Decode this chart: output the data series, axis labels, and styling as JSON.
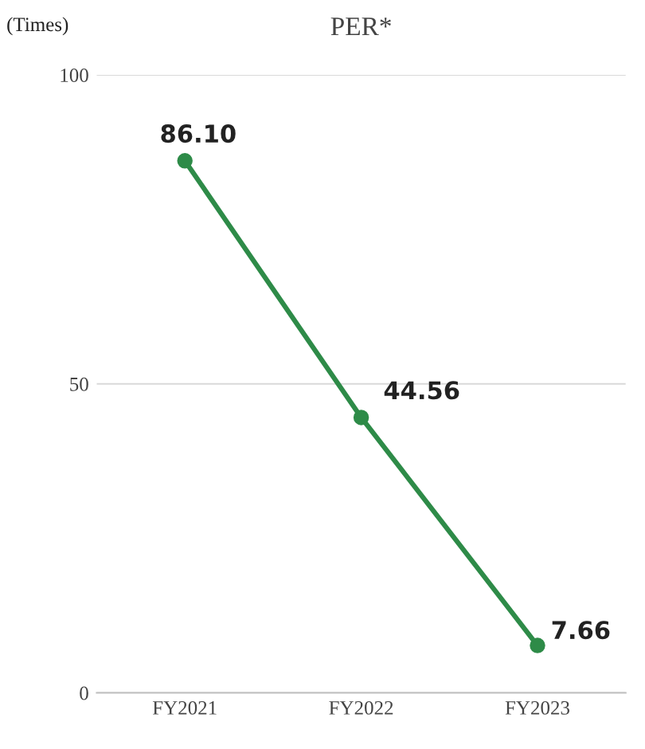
{
  "chart_data": {
    "type": "line",
    "title": "PER*",
    "ylabel": "(Times)",
    "categories": [
      "FY2021",
      "FY2022",
      "FY2023"
    ],
    "series": [
      {
        "color": "#2e8b48",
        "values": [
          86.1,
          44.56,
          7.66
        ],
        "value_labels": [
          "86.10",
          "44.56",
          "7.66"
        ]
      }
    ],
    "ylim": [
      0,
      100
    ],
    "yticks": [
      0,
      50,
      100
    ],
    "grid": "y",
    "marker": "circle",
    "line_style": "solid"
  }
}
